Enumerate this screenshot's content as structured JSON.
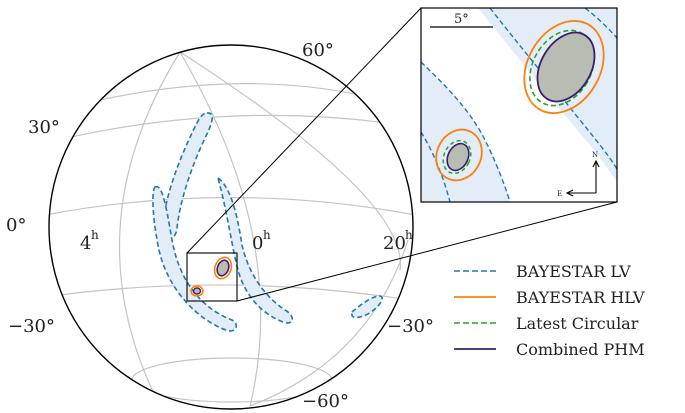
{
  "labels": {
    "lat_60": "60°",
    "lat_30": "30°",
    "lat_0": "0°",
    "lat_m30_left": "−30°",
    "lat_m30_right": "−30°",
    "lat_m60": "−60°",
    "ra_4h": "4",
    "ra_0h": "0",
    "ra_20h": "20",
    "h_sup": "h",
    "inset_scale": "5°",
    "compass_n": "N",
    "compass_e": "E"
  },
  "legend": [
    {
      "label": "BAYESTAR LV",
      "color": "#1f77b4",
      "dash": "dashed"
    },
    {
      "label": "BAYESTAR HLV",
      "color": "#ff7f0e",
      "dash": "solid"
    },
    {
      "label": "Latest Circular",
      "color": "#2ca02c",
      "dash": "dashed"
    },
    {
      "label": "Combined PHM",
      "color": "#3b1f6e",
      "dash": "solid"
    }
  ],
  "colors": {
    "lv": "#1f77b4",
    "lv_fill": "#e3edf7",
    "hlv": "#ff7f0e",
    "circular": "#2ca02c",
    "phm": "#3b1f6e",
    "phm_fill": "#b9bcb2",
    "grid": "#c4c4c4",
    "outline": "#000000"
  }
}
